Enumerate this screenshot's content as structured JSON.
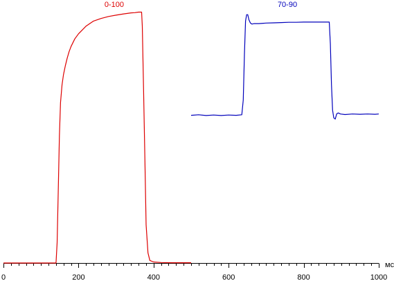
{
  "chart_data": {
    "type": "line",
    "xlabel": "",
    "ylabel": "",
    "x_unit": "мс",
    "xlim": [
      0,
      1000
    ],
    "ylim": [
      0,
      100
    ],
    "x_major_ticks": [
      0,
      200,
      400,
      600,
      800,
      1000
    ],
    "x_minor_step": 20,
    "grid": false,
    "legend": "none",
    "series": [
      {
        "name": "0-100",
        "color": "#dd0000",
        "x": [
          0,
          140,
          143,
          146,
          149,
          152,
          156,
          160,
          165,
          170,
          175,
          180,
          190,
          200,
          210,
          220,
          240,
          260,
          280,
          300,
          320,
          340,
          350,
          360,
          365,
          368,
          370,
          373,
          377,
          380,
          385,
          390,
          400,
          420,
          450,
          500
        ],
        "y": [
          0,
          0,
          8,
          28,
          50,
          63,
          70,
          74,
          77.5,
          80.5,
          83,
          85,
          88,
          90,
          91.5,
          93,
          95,
          96,
          96.8,
          97.3,
          97.8,
          98.2,
          98.3,
          98.5,
          98.5,
          98.5,
          93,
          70,
          40,
          15,
          4,
          1,
          0.4,
          0.2,
          0.1,
          0.1
        ]
      },
      {
        "name": "70-90",
        "color": "#0000bb",
        "x": [
          500,
          520,
          540,
          560,
          580,
          600,
          620,
          635,
          639,
          642,
          645,
          648,
          651,
          654,
          658,
          662,
          668,
          680,
          700,
          720,
          740,
          760,
          780,
          800,
          820,
          840,
          860,
          868,
          871,
          874,
          877,
          880,
          884,
          888,
          892,
          898,
          910,
          930,
          950,
          970,
          990,
          1000
        ],
        "y": [
          58,
          58.2,
          57.9,
          58.1,
          57.9,
          58.1,
          58,
          58.2,
          64,
          82,
          95,
          97.5,
          97.5,
          95.5,
          94.2,
          93.8,
          94,
          94,
          94.2,
          94.3,
          94.4,
          94.5,
          94.5,
          94.6,
          94.6,
          94.6,
          94.6,
          94.6,
          86,
          70,
          60,
          57,
          56.5,
          58.6,
          58.9,
          58.5,
          58.3,
          58.5,
          58.4,
          58.5,
          58.4,
          58.5
        ]
      }
    ]
  }
}
